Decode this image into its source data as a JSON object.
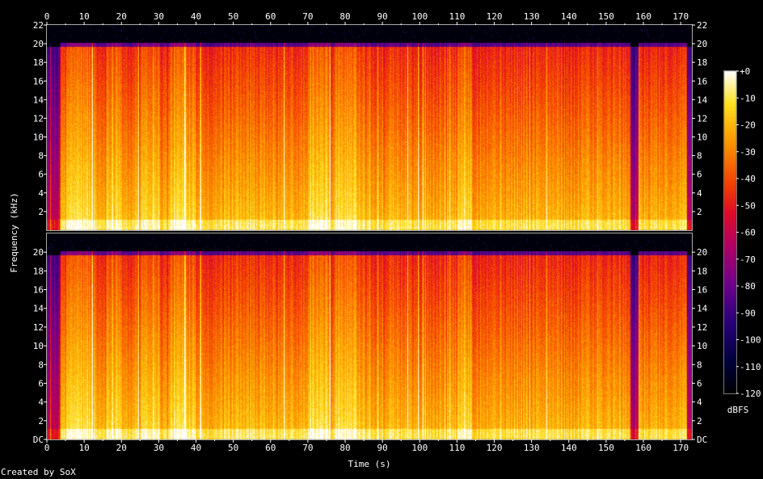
{
  "chart_data": {
    "type": "heatmap",
    "title": "",
    "xlabel": "Time (s)",
    "ylabel": "Frequency (kHz)",
    "xlim": [
      0,
      173
    ],
    "ylim": [
      0,
      22
    ],
    "x_ticks": [
      "0",
      "10",
      "20",
      "30",
      "40",
      "50",
      "60",
      "70",
      "80",
      "90",
      "100",
      "110",
      "120",
      "130",
      "140",
      "150",
      "160",
      "170"
    ],
    "x_minor_ticks": [
      "5",
      "15",
      "25",
      "35",
      "45",
      "55",
      "65",
      "75",
      "85",
      "95",
      "105",
      "115",
      "125",
      "135",
      "145",
      "155",
      "165"
    ],
    "y_ticks_top": [
      "2",
      "4",
      "6",
      "8",
      "10",
      "12",
      "14",
      "16",
      "18",
      "20",
      "22"
    ],
    "y_ticks_bottom": [
      "DC",
      "2",
      "4",
      "6",
      "8",
      "10",
      "12",
      "14",
      "16",
      "18",
      "20"
    ],
    "channels": 2,
    "colorbar": {
      "label": "dBFS",
      "ticks": [
        "+0",
        "-10",
        "-20",
        "-30",
        "-40",
        "-50",
        "-60",
        "-70",
        "-80",
        "-90",
        "-100",
        "-110",
        "-120"
      ],
      "range": [
        -120,
        0
      ]
    },
    "lowpass_cutoff_khz": 20,
    "quiet_segments_s": [
      [
        0,
        3.5
      ],
      [
        156.5,
        158.5
      ],
      [
        171.5,
        173
      ]
    ],
    "loud_segments_s": [
      [
        5,
        13
      ],
      [
        16,
        20
      ],
      [
        25,
        30
      ],
      [
        33,
        40
      ],
      [
        70,
        76
      ],
      [
        77,
        83
      ],
      [
        110,
        114
      ]
    ],
    "credit": "Created by SoX"
  }
}
